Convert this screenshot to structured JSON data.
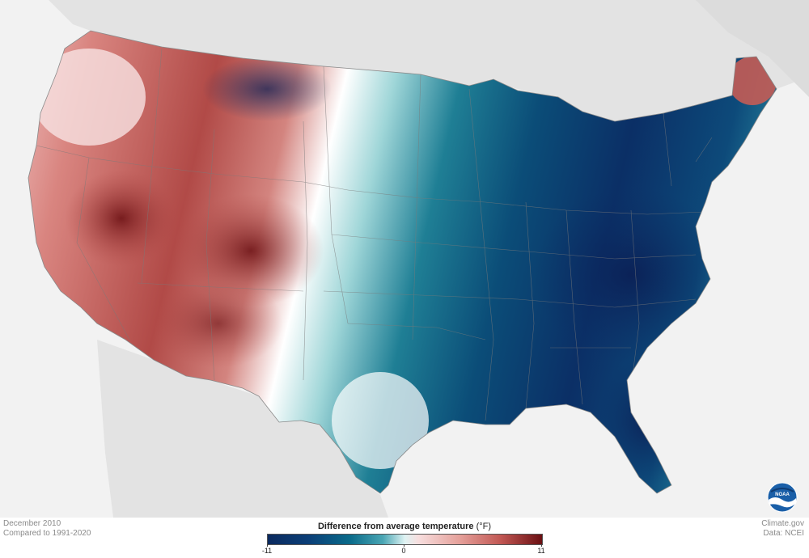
{
  "meta": {
    "period": "December 2010",
    "baseline": "Compared to 1991-2020",
    "site": "Climate.gov",
    "source": "Data: NCEI"
  },
  "legend": {
    "title": "Difference from average temperature",
    "unit": "(°F)",
    "ticks": [
      "-11",
      "0",
      "11"
    ],
    "min": -11,
    "max": 11
  },
  "logo": {
    "text": "NOAA",
    "icon": "noaa-logo-icon"
  },
  "colors": {
    "cold_max": "#0b2a5f",
    "cold_mid": "#0a6b8a",
    "neutral": "#ffffff",
    "warm_mid": "#d98580",
    "warm_max": "#6a0f12",
    "land_outside": "#e3e3e3",
    "water": "#f2f2f2",
    "boundary": "#7a7a7a"
  }
}
